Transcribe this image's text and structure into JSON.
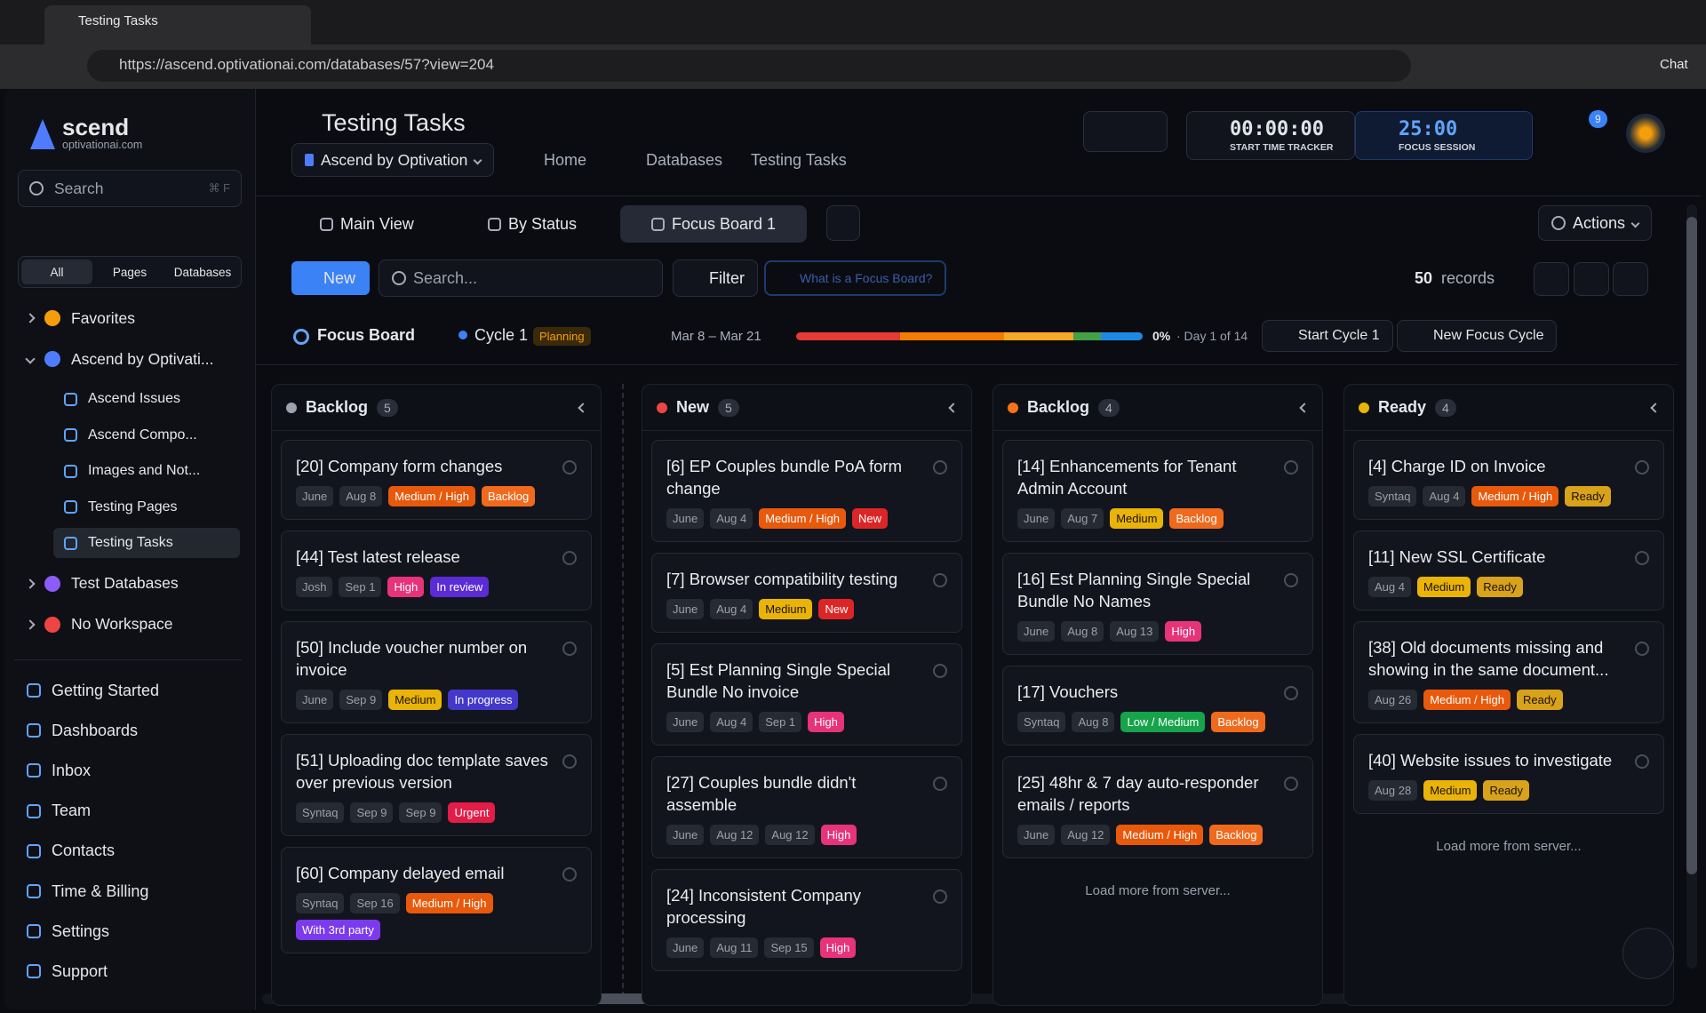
{
  "browser": {
    "tab_title": "Testing Tasks",
    "url": "https://ascend.optivationai.com/databases/57?view=204",
    "chat": "Chat"
  },
  "sidebar": {
    "brand": "scend",
    "brand_sub": "optivationai.com",
    "search": "Search",
    "search_shortcut": "⌘ F",
    "tabs": [
      "All",
      "Pages",
      "Databases"
    ],
    "tree": [
      {
        "label": "Favorites"
      },
      {
        "label": "Ascend by Optivati...",
        "children": [
          "Ascend Issues",
          "Ascend Compo...",
          "Images and Not...",
          "Testing Pages",
          "Testing Tasks"
        ]
      },
      {
        "label": "Test Databases"
      },
      {
        "label": "No Workspace"
      }
    ],
    "nav": [
      "Getting Started",
      "Dashboards",
      "Inbox",
      "Team",
      "Contacts",
      "Time & Billing",
      "Settings",
      "Support"
    ]
  },
  "header": {
    "title": "Testing Tasks",
    "workspace": "Ascend by Optivation",
    "breadcrumbs": [
      "Home",
      "Databases",
      "Testing Tasks"
    ],
    "timer": "00:00:00",
    "timer_label": "START TIME TRACKER",
    "focus": "25:00",
    "focus_label": "FOCUS SESSION",
    "notifications": 9
  },
  "views": {
    "tabs": [
      "Main View",
      "By Status",
      "Focus Board 1"
    ],
    "actions": "Actions"
  },
  "toolbar": {
    "new": "New",
    "search": "Search...",
    "filter": "Filter",
    "help": "What is a Focus Board?",
    "records_count": 50,
    "records_label": "records"
  },
  "cycle": {
    "board": "Focus Board",
    "cycle": "Cycle 1",
    "status": "Planning",
    "dates": "Mar 8 – Mar 21",
    "progress": "0%",
    "day": "· Day 1 of 14",
    "start": "Start Cycle 1",
    "new_cycle": "New Focus Cycle"
  },
  "columns": [
    {
      "name": "Backlog",
      "count": 5,
      "color": "#9ca3af",
      "cards": [
        {
          "title": "[20] Company form changes",
          "tags": [
            {
              "text": "June"
            },
            {
              "text": "Aug 8"
            },
            {
              "text": "Medium / High",
              "color": "#e8590c"
            },
            {
              "text": "Backlog",
              "color": "#f06a1d"
            }
          ]
        },
        {
          "title": "[44] Test latest release",
          "tags": [
            {
              "text": "Josh"
            },
            {
              "text": "Sep 1"
            },
            {
              "text": "High",
              "color": "#e6337a"
            },
            {
              "text": "In review",
              "color": "#5b2bd6"
            }
          ]
        },
        {
          "title": "[50] Include voucher number on invoice",
          "tags": [
            {
              "text": "June"
            },
            {
              "text": "Sep 9"
            },
            {
              "text": "Medium",
              "color": "#eab308"
            },
            {
              "text": "In progress",
              "color": "#4338ca"
            }
          ]
        },
        {
          "title": "[51] Uploading doc template saves over previous version",
          "tags": [
            {
              "text": "Syntaq"
            },
            {
              "text": "Sep 9"
            },
            {
              "text": "Sep 9"
            },
            {
              "text": "Urgent",
              "color": "#e11d48"
            }
          ]
        },
        {
          "title": "[60] Company delayed email",
          "tags": [
            {
              "text": "Syntaq"
            },
            {
              "text": "Sep 16"
            },
            {
              "text": "Medium / High",
              "color": "#e8590c"
            },
            {
              "text": "With 3rd party",
              "color": "#7c3aed"
            }
          ]
        }
      ]
    },
    {
      "name": "New",
      "count": 5,
      "color": "#ef4444",
      "cards": [
        {
          "title": "[6] EP Couples bundle PoA form change",
          "tags": [
            {
              "text": "June"
            },
            {
              "text": "Aug 4"
            },
            {
              "text": "Medium / High",
              "color": "#e8590c"
            },
            {
              "text": "New",
              "color": "#dc2626"
            }
          ]
        },
        {
          "title": "[7] Browser compatibility testing",
          "tags": [
            {
              "text": "June"
            },
            {
              "text": "Aug 4"
            },
            {
              "text": "Medium",
              "color": "#eab308"
            },
            {
              "text": "New",
              "color": "#dc2626"
            }
          ]
        },
        {
          "title": "[5] Est Planning Single Special Bundle No invoice",
          "tags": [
            {
              "text": "June"
            },
            {
              "text": "Aug 4"
            },
            {
              "text": "Sep 1"
            },
            {
              "text": "High",
              "color": "#e6337a"
            }
          ]
        },
        {
          "title": "[27] Couples bundle didn't assemble",
          "tags": [
            {
              "text": "June"
            },
            {
              "text": "Aug 12"
            },
            {
              "text": "Aug 12"
            },
            {
              "text": "High",
              "color": "#e6337a"
            }
          ]
        },
        {
          "title": "[24] Inconsistent Company processing",
          "tags": [
            {
              "text": "June"
            },
            {
              "text": "Aug 11"
            },
            {
              "text": "Sep 15"
            },
            {
              "text": "High",
              "color": "#e6337a"
            }
          ]
        }
      ]
    },
    {
      "name": "Backlog",
      "count": 4,
      "color": "#f97316",
      "cards": [
        {
          "title": "[14] Enhancements for Tenant Admin Account",
          "tags": [
            {
              "text": "June"
            },
            {
              "text": "Aug 7"
            },
            {
              "text": "Medium",
              "color": "#eab308"
            },
            {
              "text": "Backlog",
              "color": "#f06a1d"
            }
          ]
        },
        {
          "title": "[16] Est Planning Single Special Bundle No Names",
          "tags": [
            {
              "text": "June"
            },
            {
              "text": "Aug 8"
            },
            {
              "text": "Aug 13"
            },
            {
              "text": "High",
              "color": "#e6337a"
            }
          ]
        },
        {
          "title": "[17] Vouchers",
          "tags": [
            {
              "text": "Syntaq"
            },
            {
              "text": "Aug 8"
            },
            {
              "text": "Low / Medium",
              "color": "#16a34a"
            },
            {
              "text": "Backlog",
              "color": "#f06a1d"
            }
          ]
        },
        {
          "title": "[25] 48hr & 7 day auto-responder emails / reports",
          "tags": [
            {
              "text": "June"
            },
            {
              "text": "Aug 12"
            },
            {
              "text": "Medium / High",
              "color": "#e8590c"
            },
            {
              "text": "Backlog",
              "color": "#f06a1d"
            }
          ]
        }
      ],
      "load_more": "Load more from server..."
    },
    {
      "name": "Ready",
      "count": 4,
      "color": "#eab308",
      "cards": [
        {
          "title": "[4] Charge ID on Invoice",
          "tags": [
            {
              "text": "Syntaq"
            },
            {
              "text": "Aug 4"
            },
            {
              "text": "Medium / High",
              "color": "#e8590c"
            },
            {
              "text": "Ready",
              "color": "#d9a21b"
            }
          ]
        },
        {
          "title": "[11] New SSL Certificate",
          "tags": [
            {
              "text": "Aug 4"
            },
            {
              "text": "Medium",
              "color": "#eab308"
            },
            {
              "text": "Ready",
              "color": "#d9a21b"
            }
          ]
        },
        {
          "title": "[38] Old documents missing and showing in the same document...",
          "tags": [
            {
              "text": "Aug 26"
            },
            {
              "text": "Medium / High",
              "color": "#e8590c"
            },
            {
              "text": "Ready",
              "color": "#d9a21b"
            }
          ]
        },
        {
          "title": "[40] Website issues to investigate",
          "tags": [
            {
              "text": "Aug 28"
            },
            {
              "text": "Medium",
              "color": "#eab308"
            },
            {
              "text": "Ready",
              "color": "#d9a21b"
            }
          ]
        }
      ],
      "load_more": "Load more from server..."
    }
  ]
}
